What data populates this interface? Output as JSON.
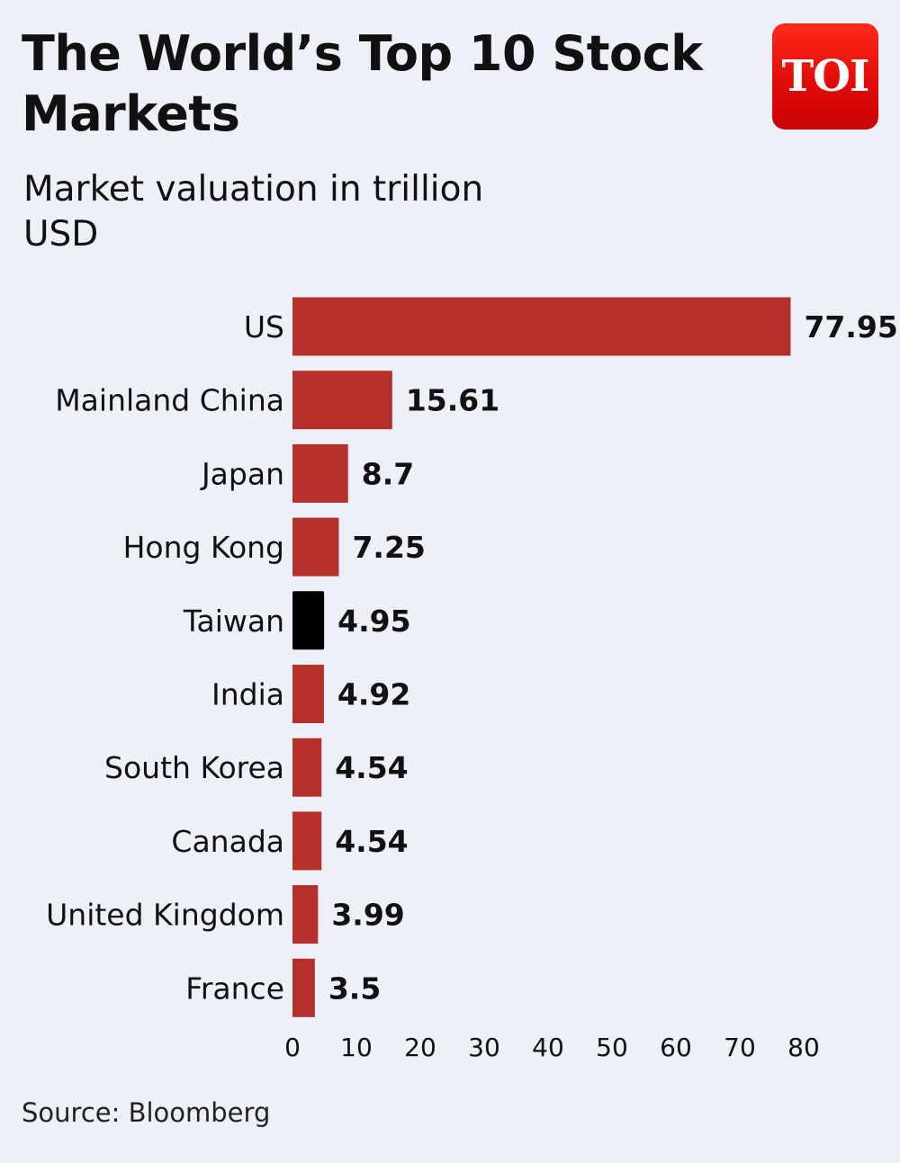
{
  "header": {
    "title": "The World’s Top 10 Stock Markets",
    "subtitle": "Market valuation in trillion USD",
    "logo_text": "TOI"
  },
  "footer": {
    "source": "Source: Bloomberg"
  },
  "colors": {
    "bar": "#b5302a",
    "highlight": "#000000",
    "background": "#edf0f6",
    "logo": "#e10c08"
  },
  "chart_data": {
    "type": "bar",
    "orientation": "horizontal",
    "title": "The World’s Top 10 Stock Markets",
    "subtitle": "Market valuation in trillion USD",
    "categories": [
      "US",
      "Mainland China",
      "Japan",
      "Hong Kong",
      "Taiwan",
      "India",
      "South Korea",
      "Canada",
      "United Kingdom",
      "France"
    ],
    "values": [
      77.95,
      15.61,
      8.7,
      7.25,
      4.95,
      4.92,
      4.54,
      4.54,
      3.99,
      3.5
    ],
    "value_labels": [
      "77.95",
      "15.61",
      "8.7",
      "7.25",
      "4.95",
      "4.92",
      "4.54",
      "4.54",
      "3.99",
      "3.5"
    ],
    "highlight_category": "Taiwan",
    "xlim": [
      0,
      80
    ],
    "xticks": [
      0,
      10,
      20,
      30,
      40,
      50,
      60,
      70,
      80
    ],
    "grid": false,
    "legend": "none",
    "source": "Source: Bloomberg"
  }
}
